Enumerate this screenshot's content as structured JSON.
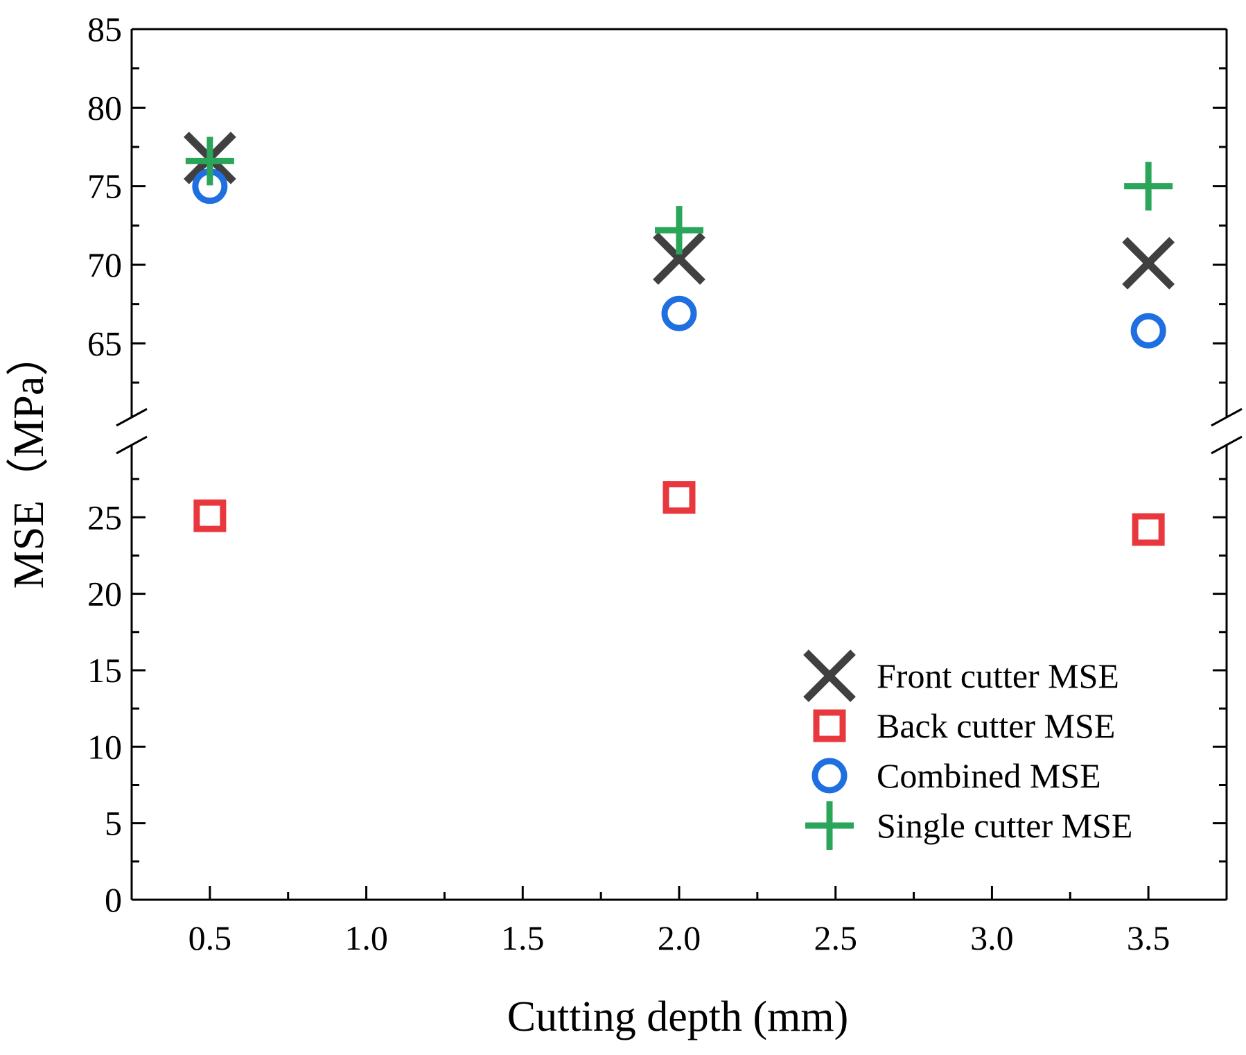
{
  "chart_data": {
    "type": "scatter",
    "title": "",
    "xlabel": "Cutting depth (mm)",
    "ylabel": "MSE（MPa）",
    "xlim": [
      0.25,
      3.75
    ],
    "x_ticks": [
      "0.5",
      "1.0",
      "1.5",
      "2.0",
      "2.5",
      "3.0",
      "3.5"
    ],
    "x_tick_values": [
      0.5,
      1.0,
      1.5,
      2.0,
      2.5,
      3.0,
      3.5
    ],
    "y_axis_break": {
      "lower_range": [
        0,
        29
      ],
      "upper_range": [
        61,
        85
      ]
    },
    "y_ticks_lower": [
      "0",
      "5",
      "10",
      "15",
      "20",
      "25"
    ],
    "y_tick_values_lower": [
      0,
      5,
      10,
      15,
      20,
      25
    ],
    "y_ticks_upper": [
      "65",
      "70",
      "75",
      "80",
      "85"
    ],
    "y_tick_values_upper": [
      65,
      70,
      75,
      80,
      85
    ],
    "x": [
      0.5,
      2.0,
      3.5
    ],
    "series": [
      {
        "name": "Front cutter MSE",
        "marker": "x",
        "color": "#404040",
        "values": [
          76.8,
          70.4,
          70.1
        ]
      },
      {
        "name": "Back cutter MSE",
        "marker": "square",
        "color": "#e8383d",
        "values": [
          25.1,
          26.3,
          24.2
        ]
      },
      {
        "name": "Combined MSE",
        "marker": "circle",
        "color": "#1f6fe0",
        "values": [
          75.0,
          66.9,
          65.8
        ]
      },
      {
        "name": "Single cutter MSE",
        "marker": "plus",
        "color": "#2aa55a",
        "values": [
          76.6,
          72.2,
          75.0
        ]
      }
    ],
    "legend_position": "bottom-right",
    "grid": false
  }
}
